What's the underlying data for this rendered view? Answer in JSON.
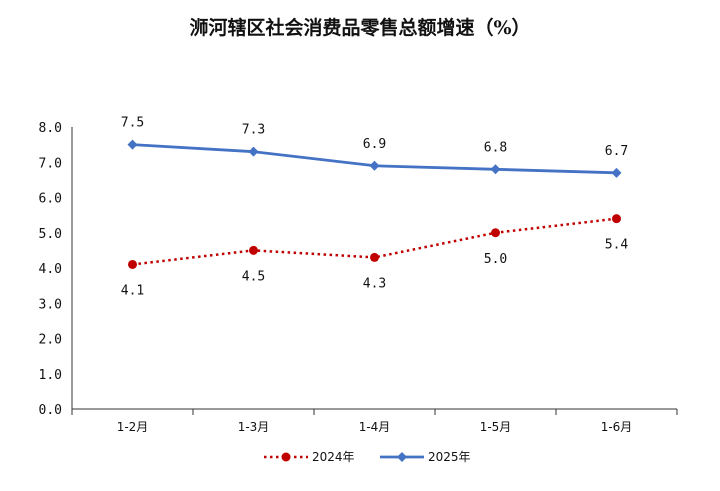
{
  "chart_data": {
    "type": "line",
    "title": "浉河辖区社会消费品零售总额增速（%）",
    "categories": [
      "1-2月",
      "1-3月",
      "1-4月",
      "1-5月",
      "1-6月"
    ],
    "y_ticks": [
      "0.0",
      "1.0",
      "2.0",
      "3.0",
      "4.0",
      "5.0",
      "6.0",
      "7.0",
      "8.0"
    ],
    "ylim": [
      0,
      8
    ],
    "grid": false,
    "legend_position": "bottom",
    "series": [
      {
        "name": "2024年",
        "values": [
          4.1,
          4.5,
          4.3,
          5.0,
          5.4
        ],
        "labels": [
          "4.1",
          "4.5",
          "4.3",
          "5.0",
          "5.4"
        ],
        "color": "#c00000",
        "line_style": "dotted",
        "marker": "circle",
        "label_position": "below"
      },
      {
        "name": "2025年",
        "values": [
          7.5,
          7.3,
          6.9,
          6.8,
          6.7
        ],
        "labels": [
          "7.5",
          "7.3",
          "6.9",
          "6.8",
          "6.7"
        ],
        "color": "#4472c4",
        "line_style": "solid",
        "marker": "diamond",
        "label_position": "above"
      }
    ]
  }
}
